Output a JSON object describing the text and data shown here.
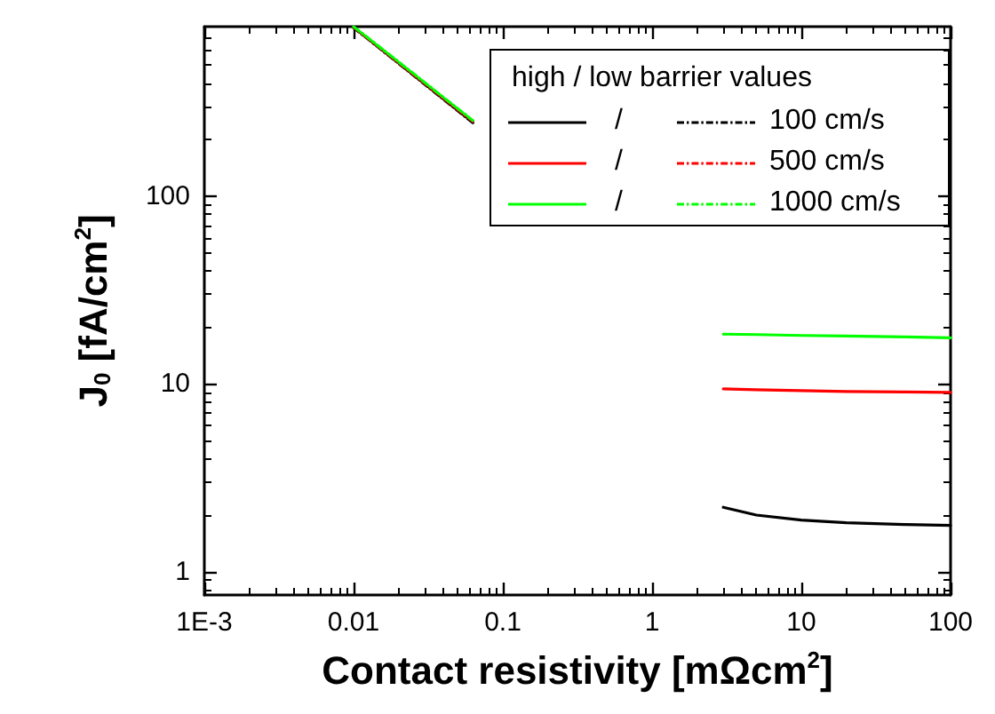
{
  "chart_data": {
    "type": "line",
    "xlabel": "Contact resistivity [mΩcm$^{2}$]",
    "ylabel": "J$_{0}$ [fA/cm$^{2}$]",
    "legend_title": "high / low barrier values",
    "legend": "top right",
    "log": "xy",
    "xlim": [
      0.001,
      100
    ],
    "xticks": [
      {
        "value": 0.001,
        "label": "1E-3"
      },
      0.01,
      0.1,
      1,
      10,
      100
    ],
    "ylim": [
      0.75,
      800
    ],
    "yticks": [
      1,
      10,
      100
    ],
    "grid": false,
    "marker": "none",
    "series": [
      {
        "name": "/",
        "color": "#000000",
        "line_style": "solid",
        "x": [
          3,
          5,
          10,
          20,
          50,
          100
        ],
        "values": [
          2.2,
          2.0,
          1.88,
          1.82,
          1.78,
          1.76
        ]
      },
      {
        "name": "100 cm/s",
        "color": "#000000",
        "line_style": "dashdot",
        "x": [
          0.01,
          0.02,
          0.04,
          0.063
        ],
        "values": [
          790,
          510,
          328,
          246
        ]
      },
      {
        "name": "/",
        "color": "#ff0000",
        "line_style": "solid",
        "x": [
          3,
          5,
          10,
          20,
          50,
          100
        ],
        "values": [
          9.4,
          9.3,
          9.2,
          9.1,
          9.05,
          9.0
        ]
      },
      {
        "name": "500 cm/s",
        "color": "#ff0000",
        "line_style": "dashdot",
        "x": [
          0.01,
          0.02,
          0.04,
          0.063
        ],
        "values": [
          795,
          515,
          332,
          250
        ]
      },
      {
        "name": "/",
        "color": "#00ff00",
        "line_style": "solid",
        "x": [
          3,
          5,
          10,
          20,
          50,
          100
        ],
        "values": [
          18.4,
          18.3,
          18.1,
          18.0,
          17.8,
          17.6
        ]
      },
      {
        "name": "1000 cm/s",
        "color": "#00ff00",
        "line_style": "dashdot",
        "x": [
          0.01,
          0.02,
          0.04,
          0.063
        ],
        "values": [
          800,
          520,
          336,
          253
        ]
      }
    ]
  }
}
